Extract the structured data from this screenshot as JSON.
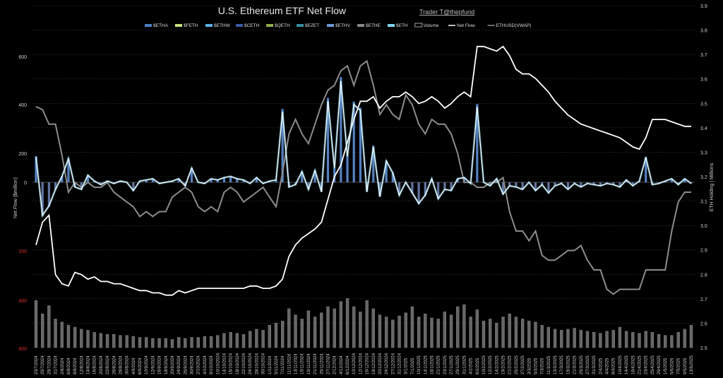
{
  "chart_data": {
    "type": "bar",
    "title": "U.S. Ethereum ETF Net Flow",
    "subtitle": "Trader T@thepfund",
    "ylabel": "Net Flow ($million)",
    "y2label": "ETH Holding | Millions",
    "ylim": [
      -600,
      600
    ],
    "y2lim": [
      2.5,
      3.9
    ],
    "yticks": [
      "600",
      "400",
      "200",
      "0",
      "200",
      "400",
      "600"
    ],
    "y2ticks": [
      "3.9",
      "3.8",
      "3.7",
      "3.6",
      "3.5",
      "3.4",
      "3.3",
      "3.2",
      "3.1",
      "3.0",
      "2.9",
      "2.8",
      "2.7",
      "2.6",
      "2.5"
    ],
    "legend": [
      {
        "name": "$ETHA",
        "color": "#4a7fc1",
        "type": "bar"
      },
      {
        "name": "$FETH",
        "color": "#c7e27a",
        "type": "bar"
      },
      {
        "name": "$ETHW",
        "color": "#5bb0e6",
        "type": "bar"
      },
      {
        "name": "$CETH",
        "color": "#3f5aa8",
        "type": "bar"
      },
      {
        "name": "$QETH",
        "color": "#8fb04a",
        "type": "bar"
      },
      {
        "name": "$EZET",
        "color": "#3a8fa0",
        "type": "bar"
      },
      {
        "name": "$ETHV",
        "color": "#6a9ad8",
        "type": "bar"
      },
      {
        "name": "$ETHE",
        "color": "#8a8a8a",
        "type": "bar"
      },
      {
        "name": "$ETH",
        "color": "#7fd8f0",
        "type": "bar"
      },
      {
        "name": "Volume",
        "color": "#cccccc",
        "type": "box"
      },
      {
        "name": "Net Flow",
        "color": "#ffffff",
        "type": "line"
      },
      {
        "name": "ETHUSD(VWAP)",
        "color": "#8c8c8c",
        "type": "line"
      }
    ],
    "x": [
      "23/7/2024",
      "25/7/2024",
      "29/7/2024",
      "31/7/2024",
      "2/8/2024",
      "6/8/2024",
      "8/8/2024",
      "12/8/2024",
      "14/8/2024",
      "16/8/2024",
      "20/8/2024",
      "22/8/2024",
      "26/8/2024",
      "28/8/2024",
      "30/8/2024",
      "4/9/2024",
      "6/9/2024",
      "10/9/2024",
      "12/9/2024",
      "16/9/2024",
      "18/9/2024",
      "20/9/2024",
      "24/9/2024",
      "26/9/2024",
      "30/9/2024",
      "2/10/2024",
      "4/10/2024",
      "8/10/2024",
      "10/10/2024",
      "14/10/2024",
      "16/10/2024",
      "18/10/2024",
      "22/10/2024",
      "24/10/2024",
      "28/10/2024",
      "30/10/2024",
      "1/11/2024",
      "5/11/2024",
      "7/11/2024",
      "11/11/2024",
      "13/11/2024",
      "15/11/2024",
      "19/11/2024",
      "21/11/2024",
      "25/11/2024",
      "27/11/2024",
      "2/12/2024",
      "4/12/2024",
      "6/12/2024",
      "10/12/2024",
      "12/12/2024",
      "16/12/2024",
      "18/12/2024",
      "20/12/2024",
      "24/12/2024",
      "27/12/2024",
      "31/12/2024",
      "3/1/2025",
      "7/1/2025",
      "10/1/2025",
      "14/1/2025",
      "16/1/2025",
      "21/1/2025",
      "23/1/2025",
      "27/1/2025",
      "29/1/2025",
      "31/1/2025",
      "4/2/2025",
      "6/2/2025",
      "10/2/2025",
      "12/2/2025",
      "14/2/2025",
      "19/2/2025",
      "21/2/2025",
      "25/2/2025",
      "27/2/2025",
      "3/3/2025",
      "5/3/2025",
      "7/3/2025",
      "11/3/2025",
      "13/3/2025",
      "17/3/2025",
      "19/3/2025",
      "21/3/2025",
      "25/3/2025",
      "27/3/2025",
      "31/3/2025",
      "2/4/2025",
      "4/4/2025",
      "8/4/2025",
      "10/4/2025",
      "14/4/2025",
      "16/4/2025",
      "21/4/2025",
      "23/4/2025",
      "25/4/2025",
      "29/4/2025",
      "1/5/2025",
      "5/5/2025",
      "7/5/2025",
      "9/5/2025",
      "13/5/2025"
    ],
    "net_flow": [
      107,
      -140,
      -100,
      -30,
      25,
      100,
      -20,
      -30,
      30,
      5,
      -10,
      5,
      -5,
      5,
      0,
      -35,
      5,
      10,
      15,
      -5,
      0,
      5,
      15,
      -15,
      60,
      0,
      -5,
      15,
      10,
      20,
      25,
      15,
      10,
      -5,
      20,
      -5,
      5,
      10,
      300,
      -20,
      -10,
      45,
      -30,
      50,
      -40,
      345,
      60,
      430,
      110,
      330,
      305,
      -40,
      150,
      -60,
      90,
      40,
      -55,
      0,
      -45,
      -90,
      -55,
      15,
      -70,
      -30,
      -35,
      15,
      20,
      -5,
      320,
      0,
      -15,
      15,
      -50,
      -15,
      -20,
      -30,
      0,
      -35,
      -10,
      -45,
      -15,
      -5,
      -30,
      -5,
      -20,
      -5,
      -10,
      -15,
      -5,
      -10,
      -20,
      10,
      -15,
      5,
      105,
      -10,
      -5,
      5,
      15,
      -10,
      15,
      -5
    ],
    "net_flow_line": [
      -1,
      -5,
      -10,
      -4,
      -2,
      0,
      -3,
      -5,
      -1,
      0,
      -2,
      0,
      -1,
      0,
      -1,
      -3,
      -1,
      0,
      1,
      0,
      -1,
      0,
      1,
      -1,
      3,
      0,
      -1,
      1,
      0,
      1,
      2,
      1,
      0,
      -1,
      1,
      -1,
      0,
      1,
      20,
      0,
      -2,
      3,
      -3,
      4,
      -3,
      20,
      5,
      28,
      8,
      20,
      18,
      -3,
      10,
      -5,
      7,
      3,
      -5,
      0,
      -4,
      -8,
      -5,
      1,
      -6,
      -2,
      -3,
      1,
      1,
      -1,
      15,
      0,
      -1,
      1,
      -3,
      -1,
      -2,
      -3,
      0,
      -3,
      -1,
      -4,
      -1,
      0,
      -2,
      0,
      -1,
      0,
      0,
      -1,
      0,
      -1,
      -1,
      1,
      -1,
      0,
      6,
      -1,
      0,
      0,
      1,
      -1,
      1,
      0
    ],
    "eth_holding": [
      2.95,
      3.05,
      3.08,
      2.82,
      2.78,
      2.77,
      2.83,
      2.82,
      2.8,
      2.81,
      2.79,
      2.79,
      2.78,
      2.78,
      2.77,
      2.76,
      2.75,
      2.75,
      2.74,
      2.74,
      2.73,
      2.73,
      2.75,
      2.74,
      2.75,
      2.76,
      2.76,
      2.76,
      2.76,
      2.76,
      2.76,
      2.76,
      2.76,
      2.77,
      2.77,
      2.76,
      2.76,
      2.77,
      2.8,
      2.9,
      2.95,
      2.98,
      3.0,
      3.02,
      3.05,
      3.15,
      3.25,
      3.3,
      3.4,
      3.5,
      3.58,
      3.58,
      3.6,
      3.55,
      3.58,
      3.6,
      3.6,
      3.62,
      3.6,
      3.57,
      3.58,
      3.6,
      3.58,
      3.55,
      3.57,
      3.6,
      3.62,
      3.6,
      3.82,
      3.82,
      3.81,
      3.8,
      3.82,
      3.78,
      3.72,
      3.7,
      3.7,
      3.68,
      3.65,
      3.62,
      3.58,
      3.55,
      3.52,
      3.5,
      3.48,
      3.47,
      3.46,
      3.45,
      3.44,
      3.43,
      3.42,
      3.4,
      3.38,
      3.37,
      3.42,
      3.5,
      3.5,
      3.5,
      3.49,
      3.48,
      3.47,
      3.47
    ],
    "ethusd_vwap": [
      3480,
      3450,
      3300,
      3300,
      2980,
      2600,
      2700,
      2650,
      2700,
      2650,
      2650,
      2700,
      2600,
      2550,
      2500,
      2450,
      2350,
      2400,
      2350,
      2400,
      2400,
      2550,
      2600,
      2650,
      2600,
      2450,
      2400,
      2450,
      2400,
      2600,
      2650,
      2600,
      2500,
      2550,
      2600,
      2650,
      2550,
      2450,
      2800,
      3200,
      3350,
      3200,
      3100,
      3300,
      3500,
      3650,
      3700,
      3850,
      3900,
      3700,
      3900,
      3950,
      3700,
      3400,
      3500,
      3400,
      3350,
      3600,
      3500,
      3300,
      3200,
      3350,
      3300,
      3300,
      3200,
      3000,
      2700,
      2700,
      2650,
      2650,
      2700,
      2700,
      2750,
      2400,
      2200,
      2200,
      2100,
      2200,
      1950,
      1900,
      1900,
      1950,
      2000,
      2000,
      2050,
      1900,
      1800,
      1800,
      1600,
      1550,
      1600,
      1600,
      1600,
      1600,
      1800,
      1800,
      1800,
      1800,
      2200,
      2500,
      2600,
      2600
    ],
    "volume": [
      46,
      33,
      41,
      28,
      25,
      22,
      20,
      18,
      17,
      15,
      14,
      13,
      13,
      12,
      12,
      11,
      10,
      10,
      9,
      9,
      9,
      8,
      10,
      9,
      10,
      10,
      11,
      11,
      12,
      14,
      15,
      14,
      13,
      16,
      18,
      17,
      22,
      24,
      26,
      38,
      32,
      28,
      36,
      30,
      34,
      40,
      38,
      45,
      48,
      40,
      35,
      46,
      38,
      32,
      30,
      27,
      31,
      34,
      40,
      30,
      33,
      29,
      28,
      35,
      32,
      40,
      42,
      30,
      37,
      26,
      28,
      24,
      30,
      33,
      30,
      28,
      26,
      25,
      22,
      20,
      18,
      17,
      18,
      19,
      17,
      16,
      15,
      14,
      16,
      17,
      20,
      16,
      15,
      14,
      16,
      15,
      13,
      12,
      12,
      15,
      18,
      22
    ]
  }
}
